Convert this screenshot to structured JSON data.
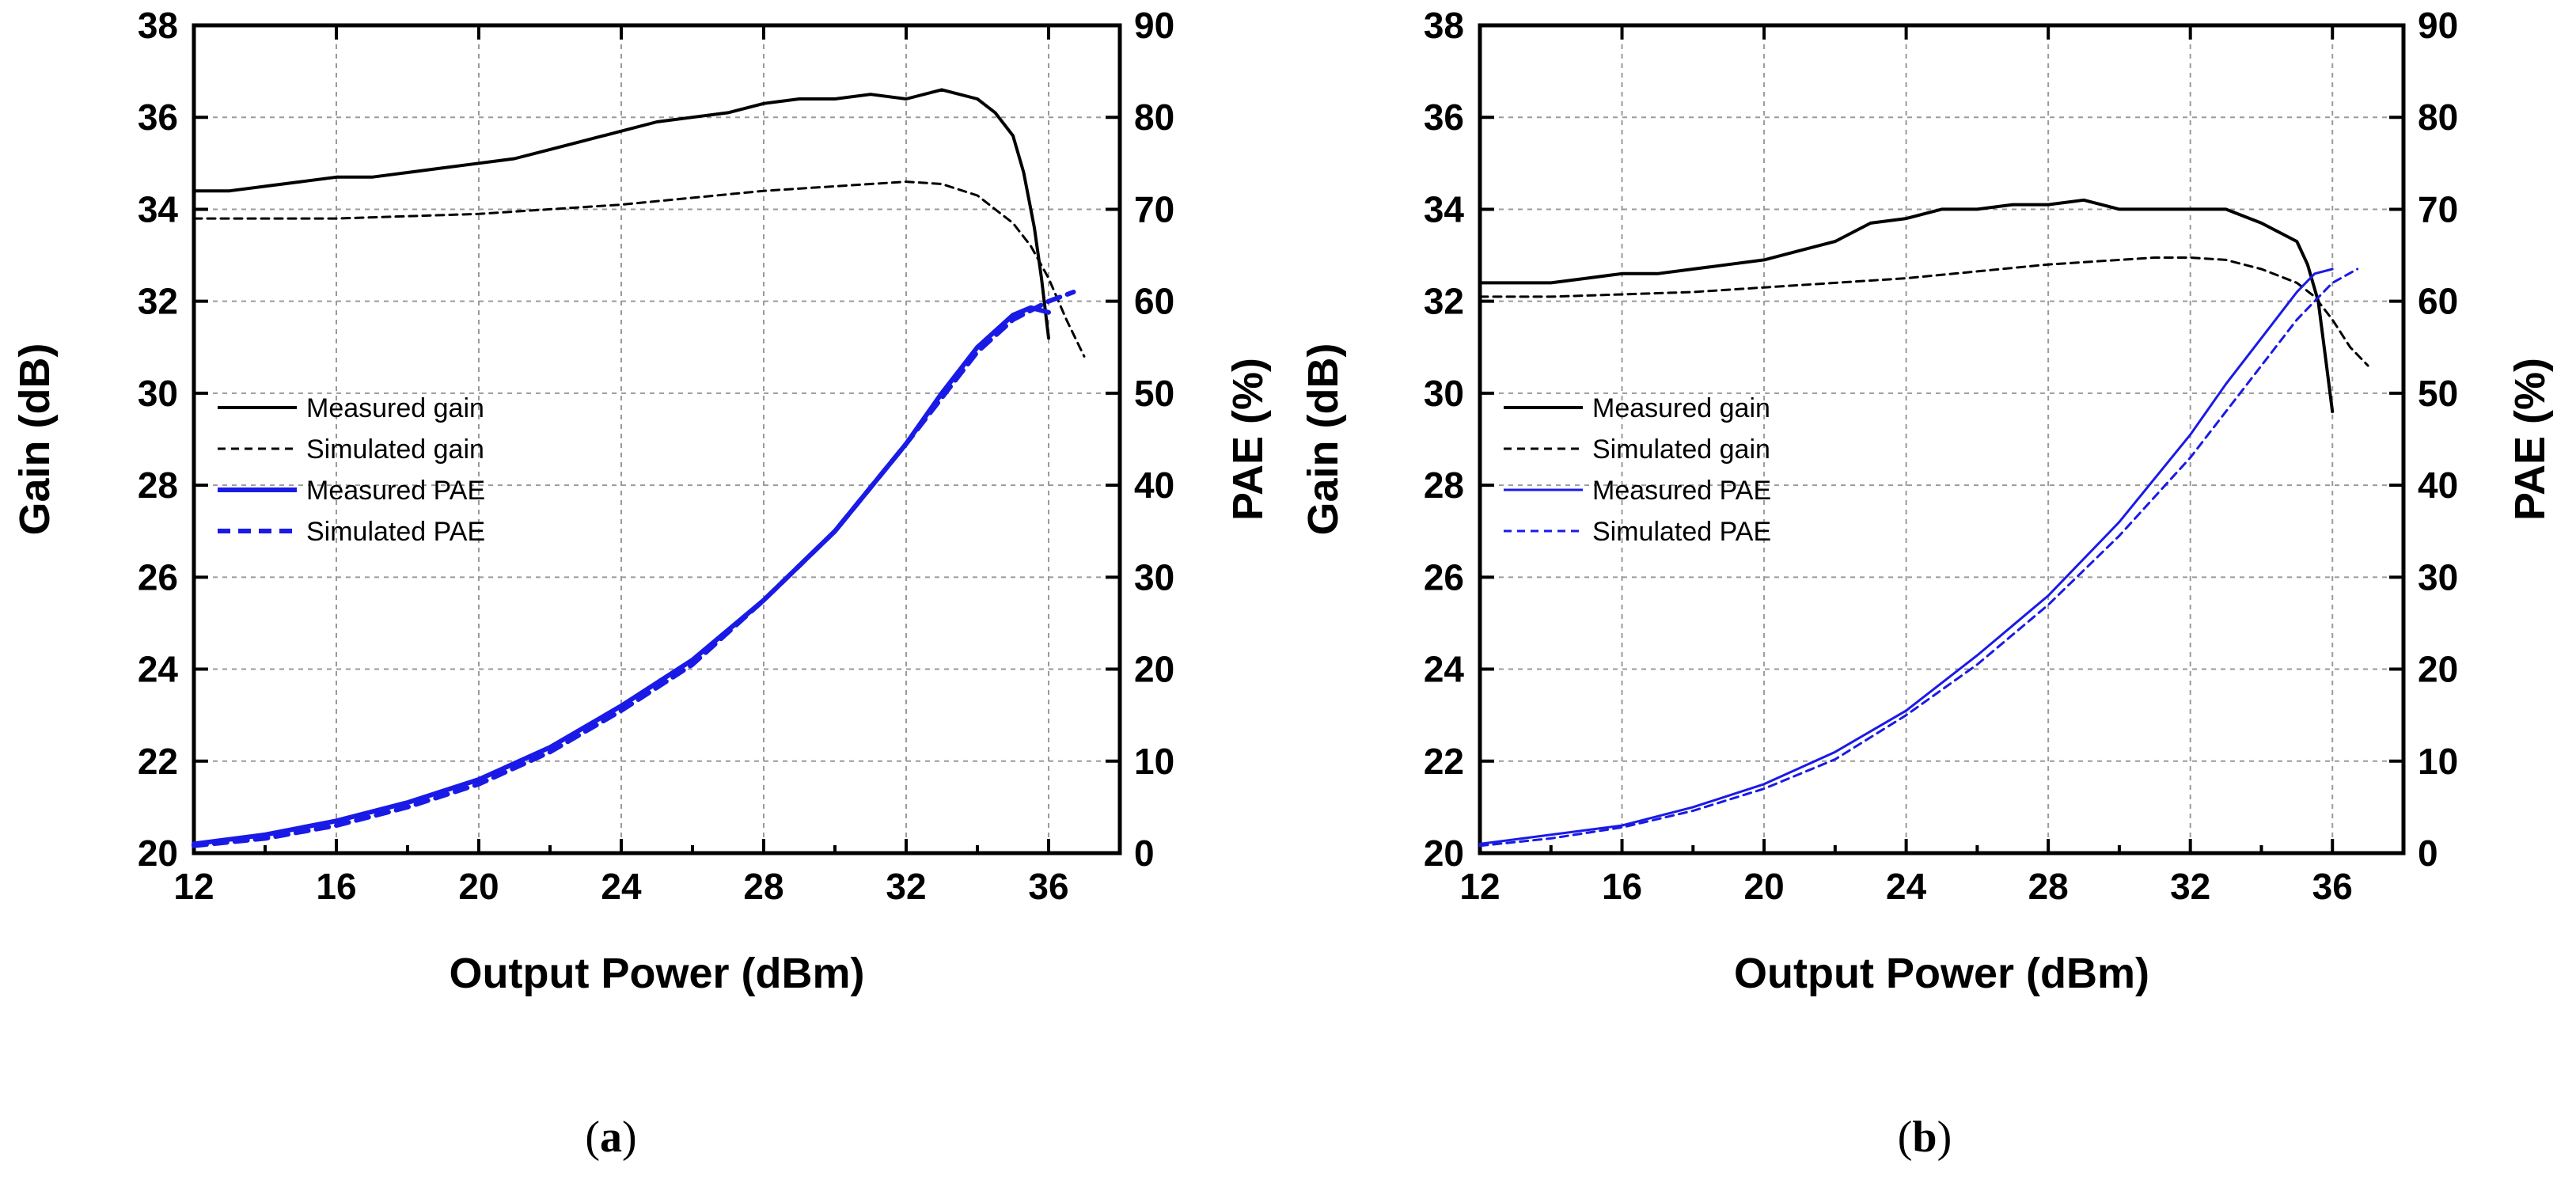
{
  "chart_data": [
    {
      "type": "line",
      "panel": "a",
      "caption": {
        "open": "(",
        "letter": "a",
        "close": ")"
      },
      "xlabel": "Output Power (dBm)",
      "ylabel": "Gain (dB)",
      "y2label": "PAE (%)",
      "xlim": [
        12,
        38
      ],
      "ylim": [
        20,
        38
      ],
      "y2lim": [
        0,
        90
      ],
      "xticks": [
        12,
        16,
        20,
        24,
        28,
        32,
        36
      ],
      "yticks": [
        20,
        22,
        24,
        26,
        28,
        30,
        32,
        34,
        36,
        38
      ],
      "y2ticks": [
        0,
        10,
        20,
        30,
        40,
        50,
        60,
        70,
        80,
        90
      ],
      "grid": true,
      "legend_position": "left-middle",
      "series": [
        {
          "name": "Measured gain",
          "axis": "left",
          "color": "#000000",
          "style": "solid",
          "width": 4,
          "x": [
            12,
            13,
            14,
            15,
            16,
            17,
            18,
            19,
            20,
            21,
            22,
            23,
            24,
            25,
            26,
            27,
            28,
            29,
            30,
            31,
            32,
            33,
            34,
            34.5,
            35,
            35.3,
            35.6,
            35.8,
            36
          ],
          "y": [
            34.4,
            34.4,
            34.5,
            34.6,
            34.7,
            34.7,
            34.8,
            34.9,
            35.0,
            35.1,
            35.3,
            35.5,
            35.7,
            35.9,
            36.0,
            36.1,
            36.3,
            36.4,
            36.4,
            36.5,
            36.4,
            36.6,
            36.4,
            36.1,
            35.6,
            34.8,
            33.6,
            32.5,
            31.2
          ]
        },
        {
          "name": "Simulated gain",
          "axis": "left",
          "color": "#000000",
          "style": "dashed",
          "width": 3,
          "x": [
            12,
            14,
            16,
            18,
            20,
            22,
            24,
            26,
            28,
            30,
            31,
            32,
            33,
            34,
            35,
            35.5,
            36,
            36.5,
            37
          ],
          "y": [
            33.8,
            33.8,
            33.8,
            33.85,
            33.9,
            34.0,
            34.1,
            34.25,
            34.4,
            34.5,
            34.55,
            34.6,
            34.55,
            34.3,
            33.7,
            33.2,
            32.5,
            31.6,
            30.8
          ]
        },
        {
          "name": "Measured PAE",
          "axis": "right",
          "color": "#1a1ae6",
          "style": "solid",
          "width": 6,
          "x": [
            12,
            14,
            16,
            18,
            20,
            22,
            24,
            26,
            28,
            30,
            32,
            33,
            34,
            35,
            35.5,
            36
          ],
          "y": [
            1.0,
            2.0,
            3.5,
            5.5,
            8.0,
            11.5,
            16.0,
            21.0,
            27.5,
            35.0,
            44.5,
            50.0,
            55.0,
            58.5,
            59.3,
            58.8
          ]
        },
        {
          "name": "Simulated PAE",
          "axis": "right",
          "color": "#1a1ae6",
          "style": "dashed",
          "width": 6,
          "x": [
            12,
            14,
            16,
            18,
            20,
            22,
            24,
            26,
            28,
            30,
            32,
            33,
            34,
            35,
            36,
            36.7
          ],
          "y": [
            0.8,
            1.6,
            3.0,
            5.0,
            7.5,
            11.0,
            15.5,
            20.5,
            27.5,
            35.0,
            44.5,
            49.5,
            54.5,
            58.0,
            60.0,
            61.0
          ]
        }
      ]
    },
    {
      "type": "line",
      "panel": "b",
      "caption": {
        "open": "(",
        "letter": "b",
        "close": ")"
      },
      "xlabel": "Output Power (dBm)",
      "ylabel": "Gain (dB)",
      "y2label": "PAE (%)",
      "xlim": [
        12,
        38
      ],
      "ylim": [
        20,
        38
      ],
      "y2lim": [
        0,
        90
      ],
      "xticks": [
        12,
        16,
        20,
        24,
        28,
        32,
        36
      ],
      "yticks": [
        20,
        22,
        24,
        26,
        28,
        30,
        32,
        34,
        36,
        38
      ],
      "y2ticks": [
        0,
        10,
        20,
        30,
        40,
        50,
        60,
        70,
        80,
        90
      ],
      "grid": true,
      "legend_position": "left-middle",
      "series": [
        {
          "name": "Measured gain",
          "axis": "left",
          "color": "#000000",
          "style": "solid",
          "width": 4,
          "x": [
            12,
            13,
            14,
            15,
            16,
            17,
            18,
            19,
            20,
            21,
            22,
            23,
            24,
            25,
            26,
            27,
            28,
            29,
            30,
            31,
            32,
            33,
            34,
            34.5,
            35,
            35.3,
            35.6,
            35.8,
            36
          ],
          "y": [
            32.4,
            32.4,
            32.4,
            32.5,
            32.6,
            32.6,
            32.7,
            32.8,
            32.9,
            33.1,
            33.3,
            33.7,
            33.8,
            34.0,
            34.0,
            34.1,
            34.1,
            34.2,
            34.0,
            34.0,
            34.0,
            34.0,
            33.7,
            33.5,
            33.3,
            32.8,
            32.0,
            30.8,
            29.6
          ]
        },
        {
          "name": "Simulated gain",
          "axis": "left",
          "color": "#000000",
          "style": "dashed",
          "width": 3,
          "x": [
            12,
            14,
            16,
            18,
            20,
            22,
            24,
            26,
            28,
            30,
            31,
            32,
            33,
            34,
            35,
            35.5,
            36,
            36.5,
            37
          ],
          "y": [
            32.1,
            32.1,
            32.15,
            32.2,
            32.3,
            32.4,
            32.5,
            32.65,
            32.8,
            32.9,
            32.95,
            32.95,
            32.9,
            32.7,
            32.4,
            32.1,
            31.6,
            31.0,
            30.6
          ]
        },
        {
          "name": "Measured PAE",
          "axis": "right",
          "color": "#1a1ae6",
          "style": "solid",
          "width": 3,
          "x": [
            12,
            14,
            16,
            18,
            20,
            22,
            24,
            26,
            28,
            30,
            32,
            33,
            34,
            35,
            35.5,
            36
          ],
          "y": [
            1.0,
            2.0,
            3.0,
            5.0,
            7.5,
            11.0,
            15.5,
            21.5,
            28.0,
            36.0,
            45.5,
            51.0,
            56.0,
            61.0,
            63.0,
            63.5
          ]
        },
        {
          "name": "Simulated PAE",
          "axis": "right",
          "color": "#1a1ae6",
          "style": "dashed",
          "width": 3,
          "x": [
            12,
            14,
            16,
            18,
            20,
            22,
            24,
            26,
            28,
            30,
            32,
            33,
            34,
            35,
            36,
            36.7
          ],
          "y": [
            0.8,
            1.6,
            2.8,
            4.6,
            7.0,
            10.2,
            15.0,
            20.5,
            27.0,
            34.5,
            43.0,
            48.0,
            53.0,
            58.0,
            62.0,
            63.5
          ]
        }
      ]
    }
  ]
}
